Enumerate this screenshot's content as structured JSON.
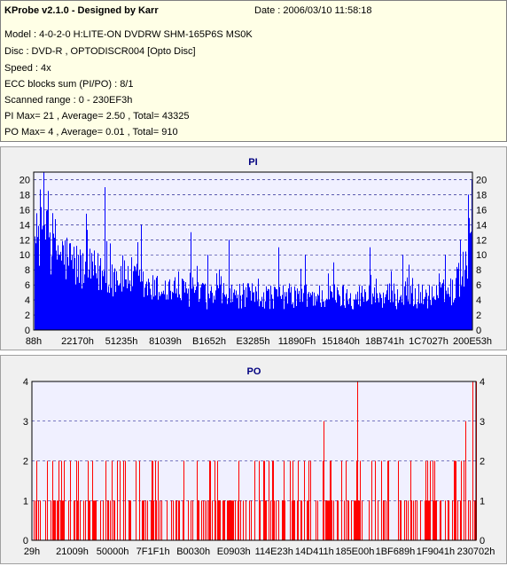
{
  "info": {
    "title": "KProbe v2.1.0 - Designed by Karr",
    "date": "Date : 2006/03/10 11:58:18",
    "lines": [
      "Model : 4-0-2-0 H:LITE-ON DVDRW SHM-165P6S MS0K",
      "Disc : DVD-R , OPTODISCR004 [Opto Disc]",
      "Speed : 4x",
      "ECC blocks sum (PI/PO) : 8/1",
      "Scanned range : 0 - 230EF3h",
      "PI Max= 21 , Average= 2.50 , Total= 43325",
      "PO Max= 4 , Average= 0.01 , Total= 910"
    ]
  },
  "colors": {
    "pi": "#0000ff",
    "po": "#ff0000",
    "plot_bg": "#f0f0ff",
    "title": "#000080"
  },
  "chart_data": [
    {
      "type": "bar",
      "title": "PI",
      "x_tick_labels": [
        "88h",
        "22170h",
        "51235h",
        "81039h",
        "B1652h",
        "E3285h",
        "11890Fh",
        "151840h",
        "18B741h",
        "1C7027h",
        "200E53h"
      ],
      "y_ticks": [
        0,
        2,
        4,
        6,
        8,
        10,
        12,
        14,
        16,
        18,
        20
      ],
      "ylim": [
        0,
        21
      ],
      "xlim": [
        0,
        2296051
      ],
      "grid": true,
      "profile": [
        [
          0,
          11
        ],
        [
          20000,
          14
        ],
        [
          50000,
          17
        ],
        [
          90000,
          13
        ],
        [
          150000,
          11
        ],
        [
          250000,
          9
        ],
        [
          400000,
          8
        ],
        [
          500000,
          8
        ],
        [
          600000,
          6
        ],
        [
          700000,
          6
        ],
        [
          900000,
          5
        ],
        [
          1200000,
          5
        ],
        [
          1600000,
          5
        ],
        [
          1900000,
          5
        ],
        [
          2100000,
          5
        ],
        [
          2200000,
          6
        ],
        [
          2250000,
          9
        ],
        [
          2270000,
          12
        ],
        [
          2285000,
          17
        ],
        [
          2296051,
          21
        ]
      ],
      "spikes": [
        [
          70000,
          16
        ],
        [
          370000,
          19
        ],
        [
          560000,
          14
        ],
        [
          820000,
          13
        ],
        [
          910000,
          10
        ],
        [
          1020000,
          12
        ],
        [
          1280000,
          11
        ],
        [
          1420000,
          10
        ],
        [
          1570000,
          9
        ],
        [
          1760000,
          11
        ],
        [
          1930000,
          10
        ],
        [
          2150000,
          10
        ],
        [
          2230000,
          12
        ],
        [
          2275000,
          18
        ],
        [
          2290000,
          20
        ]
      ]
    },
    {
      "type": "bar",
      "title": "PO",
      "x_tick_labels": [
        "29h",
        "21009h",
        "50000h",
        "7F1F1h",
        "B0030h",
        "E0903h",
        "114E23h",
        "14D411h",
        "185E00h",
        "1BF689h",
        "1F9041h",
        "230702h"
      ],
      "y_ticks": [
        0,
        1,
        2,
        3,
        4
      ],
      "ylim": [
        0,
        4
      ],
      "xlim": [
        0,
        2296051
      ],
      "grid": true,
      "spikes": [
        [
          1510000,
          3
        ],
        [
          1680000,
          4
        ],
        [
          2190000,
          2
        ],
        [
          2240000,
          3
        ],
        [
          2280000,
          4
        ],
        [
          2294000,
          4
        ]
      ]
    }
  ]
}
